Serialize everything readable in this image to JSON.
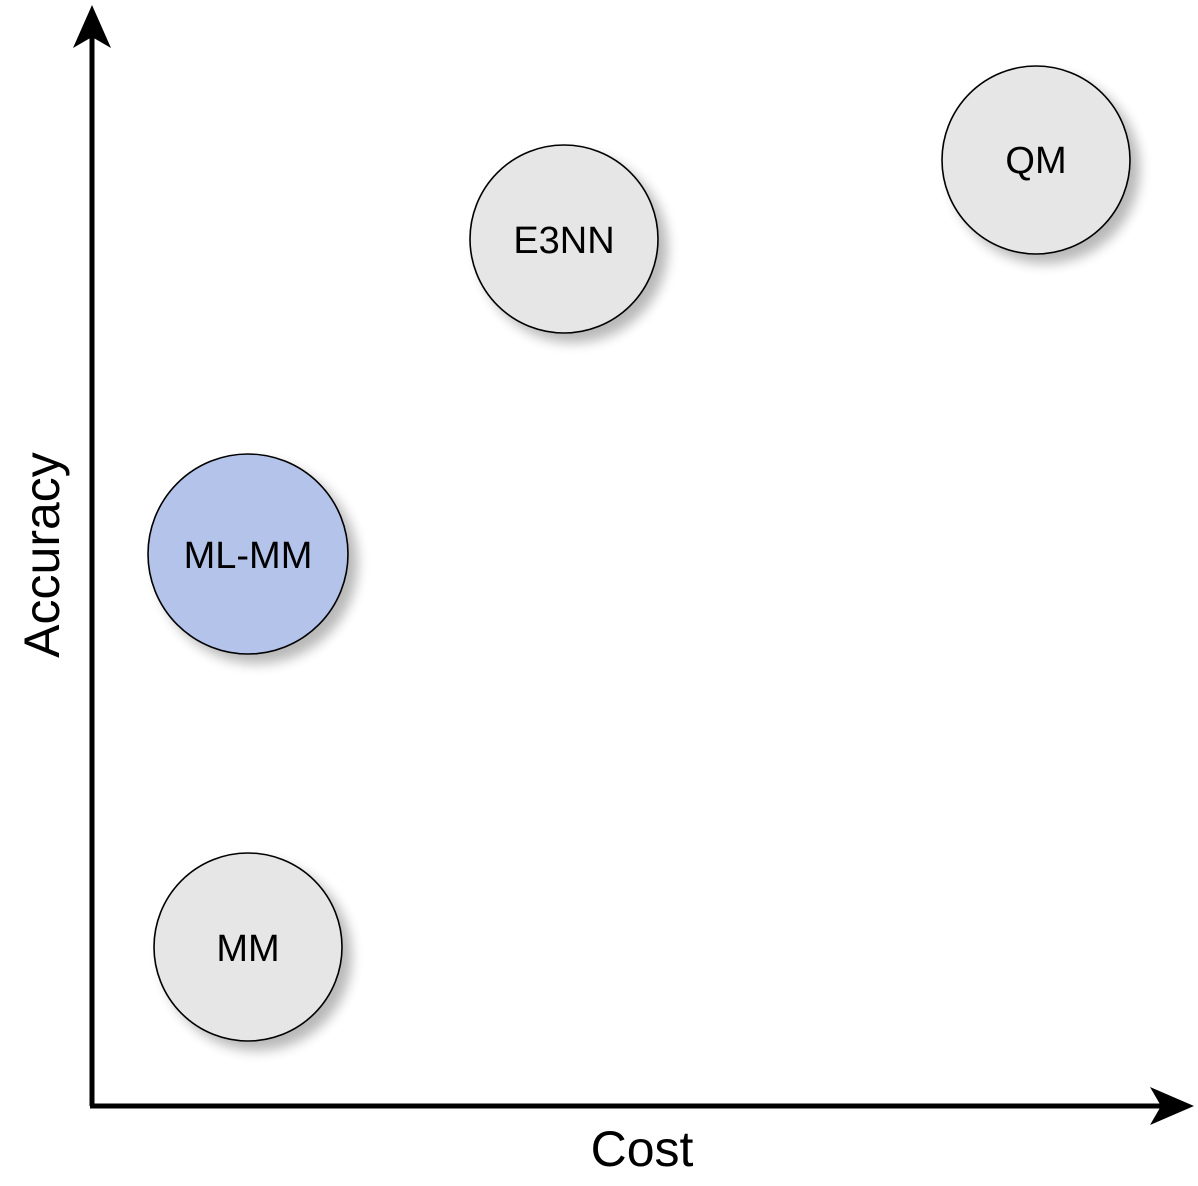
{
  "axes": {
    "x_label": "Cost",
    "y_label": "Accuracy"
  },
  "nodes": [
    {
      "label": "MM",
      "color": "#e6e6e6"
    },
    {
      "label": "ML-MM",
      "color": "#b3c3ea"
    },
    {
      "label": "E3NN",
      "color": "#e6e6e6"
    },
    {
      "label": "QM",
      "color": "#e6e6e6"
    }
  ]
}
